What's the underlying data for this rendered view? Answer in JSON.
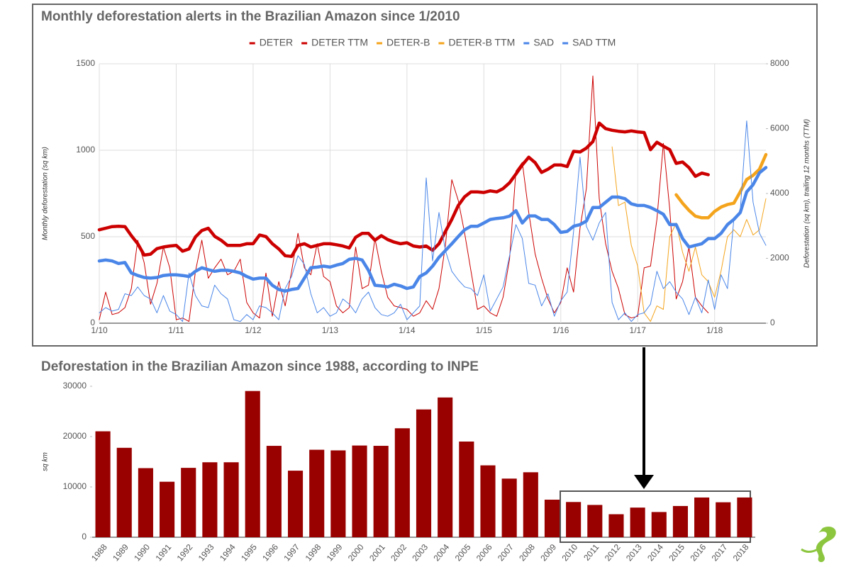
{
  "chart_data": [
    {
      "type": "line",
      "title": "Monthly deforestation alerts in the Brazilian Amazon since 1/2010",
      "ylabel": "Monthly deforestation (sq km)",
      "y2label": "Deforestation (sq km), trailing 12 months (TTM)",
      "grid": true,
      "legend": "top",
      "ylim": [
        0,
        1500
      ],
      "yticks": [
        0,
        500,
        1000,
        1500
      ],
      "y2lim": [
        0,
        8000
      ],
      "y2ticks": [
        0,
        2000,
        4000,
        6000,
        8000
      ],
      "categories": [
        "1/10",
        null,
        null,
        null,
        null,
        null,
        null,
        null,
        null,
        null,
        null,
        null,
        "1/11",
        null,
        null,
        null,
        null,
        null,
        null,
        null,
        null,
        null,
        null,
        null,
        "1/12",
        null,
        null,
        null,
        null,
        null,
        null,
        null,
        null,
        null,
        null,
        null,
        "1/13",
        null,
        null,
        null,
        null,
        null,
        null,
        null,
        null,
        null,
        null,
        null,
        "1/14",
        null,
        null,
        null,
        null,
        null,
        null,
        null,
        null,
        null,
        null,
        null,
        "1/15",
        null,
        null,
        null,
        null,
        null,
        null,
        null,
        null,
        null,
        null,
        null,
        "1/16",
        null,
        null,
        null,
        null,
        null,
        null,
        null,
        null,
        null,
        null,
        null,
        "1/17",
        null,
        null,
        null,
        null,
        null,
        null,
        null,
        null,
        null,
        null,
        null,
        "1/18",
        null,
        null,
        null,
        null,
        null,
        null,
        null,
        null
      ],
      "series": [
        {
          "name": "DETER",
          "color": "#cc0000",
          "values": [
            20,
            180,
            50,
            60,
            90,
            200,
            480,
            350,
            110,
            230,
            440,
            320,
            20,
            30,
            10,
            300,
            480,
            260,
            320,
            370,
            280,
            300,
            370,
            120,
            60,
            30,
            290,
            40,
            240,
            100,
            300,
            520,
            320,
            280,
            460,
            270,
            240,
            100,
            60,
            90,
            440,
            200,
            220,
            490,
            300,
            150,
            100,
            90,
            80,
            40,
            60,
            130,
            80,
            200,
            450,
            830,
            710,
            520,
            300,
            80,
            100,
            60,
            40,
            150,
            370,
            880,
            930,
            640,
            400,
            260,
            140,
            60,
            120,
            320,
            180,
            550,
            780,
            1430,
            720,
            460,
            300,
            200,
            50,
            30,
            40,
            320,
            330,
            600,
            1040,
            660,
            140,
            240,
            440,
            150,
            100,
            60,
            null,
            null,
            null,
            null,
            null,
            null,
            null,
            null,
            null
          ]
        },
        {
          "name": "DETER TTM",
          "color": "#cc0000",
          "axis": "y2",
          "values": [
            2880,
            2930,
            2980,
            2990,
            2980,
            2700,
            2450,
            2100,
            2130,
            2300,
            2350,
            2380,
            2400,
            2220,
            2290,
            2660,
            2860,
            2930,
            2680,
            2560,
            2400,
            2400,
            2400,
            2450,
            2450,
            2720,
            2670,
            2450,
            2290,
            2080,
            2060,
            2400,
            2450,
            2350,
            2400,
            2450,
            2450,
            2420,
            2380,
            2320,
            2650,
            2770,
            2770,
            2560,
            2700,
            2580,
            2500,
            2450,
            2480,
            2380,
            2350,
            2380,
            2250,
            2450,
            2830,
            3200,
            3630,
            3900,
            4050,
            4050,
            4030,
            4080,
            4050,
            4150,
            4330,
            4600,
            4880,
            5120,
            4950,
            4650,
            4750,
            4880,
            4880,
            4830,
            5300,
            5280,
            5400,
            5600,
            6170,
            6000,
            5950,
            5920,
            5900,
            5930,
            5900,
            5880,
            5350,
            5580,
            5460,
            5350,
            4930,
            4970,
            4800,
            4530,
            4630,
            4580,
            null,
            null,
            null,
            null,
            null,
            null,
            null,
            null,
            null
          ]
        },
        {
          "name": "DETER-B",
          "color": "#f4a41c",
          "values": [
            null,
            null,
            null,
            null,
            null,
            null,
            null,
            null,
            null,
            null,
            null,
            null,
            null,
            null,
            null,
            null,
            null,
            null,
            null,
            null,
            null,
            null,
            null,
            null,
            null,
            null,
            null,
            null,
            null,
            null,
            null,
            null,
            null,
            null,
            null,
            null,
            null,
            null,
            null,
            null,
            null,
            null,
            null,
            null,
            null,
            null,
            null,
            null,
            null,
            null,
            null,
            null,
            null,
            null,
            null,
            null,
            null,
            null,
            null,
            null,
            null,
            null,
            null,
            null,
            null,
            null,
            null,
            null,
            null,
            null,
            null,
            null,
            null,
            null,
            null,
            null,
            null,
            null,
            null,
            null,
            1020,
            680,
            700,
            450,
            330,
            60,
            10,
            100,
            80,
            500,
            580,
            410,
            300,
            440,
            280,
            240,
            150,
            300,
            500,
            540,
            500,
            600,
            510,
            540,
            720
          ]
        },
        {
          "name": "DETER-B TTM",
          "color": "#f4a41c",
          "axis": "y2",
          "values": [
            null,
            null,
            null,
            null,
            null,
            null,
            null,
            null,
            null,
            null,
            null,
            null,
            null,
            null,
            null,
            null,
            null,
            null,
            null,
            null,
            null,
            null,
            null,
            null,
            null,
            null,
            null,
            null,
            null,
            null,
            null,
            null,
            null,
            null,
            null,
            null,
            null,
            null,
            null,
            null,
            null,
            null,
            null,
            null,
            null,
            null,
            null,
            null,
            null,
            null,
            null,
            null,
            null,
            null,
            null,
            null,
            null,
            null,
            null,
            null,
            null,
            null,
            null,
            null,
            null,
            null,
            null,
            null,
            null,
            null,
            null,
            null,
            null,
            null,
            null,
            null,
            null,
            null,
            null,
            null,
            null,
            null,
            null,
            null,
            null,
            null,
            null,
            null,
            null,
            null,
            3960,
            3700,
            3480,
            3300,
            3250,
            3250,
            3450,
            3580,
            3660,
            3700,
            4050,
            4430,
            4560,
            4750,
            5200
          ]
        },
        {
          "name": "SAD",
          "color": "#4a86e8",
          "values": [
            60,
            90,
            70,
            80,
            170,
            160,
            210,
            160,
            140,
            60,
            160,
            70,
            50,
            10,
            290,
            160,
            100,
            90,
            220,
            170,
            140,
            20,
            10,
            50,
            20,
            100,
            90,
            60,
            20,
            200,
            270,
            390,
            340,
            170,
            60,
            90,
            40,
            60,
            140,
            110,
            60,
            140,
            180,
            90,
            50,
            40,
            60,
            110,
            20,
            60,
            100,
            840,
            360,
            640,
            420,
            300,
            250,
            210,
            200,
            160,
            280,
            70,
            140,
            210,
            390,
            570,
            490,
            230,
            220,
            100,
            170,
            40,
            130,
            180,
            530,
            960,
            560,
            480,
            580,
            640,
            120,
            20,
            60,
            10,
            50,
            60,
            110,
            300,
            200,
            240,
            180,
            140,
            50,
            150,
            60,
            250,
            80,
            280,
            200,
            600,
            650,
            1170,
            700,
            520,
            450
          ]
        },
        {
          "name": "SAD TTM",
          "color": "#4a86e8",
          "axis": "y2",
          "values": [
            1920,
            1950,
            1920,
            1840,
            1870,
            1550,
            1470,
            1410,
            1390,
            1410,
            1470,
            1490,
            1490,
            1470,
            1440,
            1600,
            1710,
            1650,
            1600,
            1630,
            1630,
            1600,
            1550,
            1440,
            1360,
            1390,
            1390,
            1170,
            1040,
            990,
            1040,
            1070,
            1390,
            1710,
            1730,
            1760,
            1730,
            1790,
            1840,
            1970,
            2000,
            1950,
            1630,
            1170,
            1150,
            1120,
            1200,
            1150,
            1070,
            1120,
            1440,
            1550,
            1760,
            2030,
            2240,
            2450,
            2670,
            2880,
            2990,
            2990,
            3090,
            3200,
            3230,
            3250,
            3300,
            3470,
            3090,
            3310,
            3310,
            3200,
            3200,
            3040,
            2800,
            2830,
            2990,
            3040,
            3150,
            3570,
            3570,
            3730,
            3890,
            3890,
            3840,
            3680,
            3630,
            3630,
            3570,
            3470,
            3360,
            3040,
            3040,
            2610,
            2350,
            2400,
            2450,
            2610,
            2610,
            2770,
            3040,
            3200,
            3410,
            4050,
            4270,
            4640,
            4800
          ]
        }
      ]
    },
    {
      "type": "bar",
      "title": "Deforestation in the Brazilian Amazon since 1988, according to INPE",
      "ylabel": "sq km",
      "color": "#990000",
      "grid": false,
      "ylim": [
        0,
        30000
      ],
      "yticks": [
        0,
        10000,
        20000,
        30000
      ],
      "categories": [
        "1988",
        "1989",
        "1990",
        "1991",
        "1992",
        "1993",
        "1994",
        "1995",
        "1996",
        "1997",
        "1998",
        "1999",
        "2000",
        "2001",
        "2002",
        "2003",
        "2004",
        "2005",
        "2006",
        "2007",
        "2008",
        "2009",
        "2010",
        "2011",
        "2012",
        "2013",
        "2014",
        "2015",
        "2016",
        "2017",
        "2018"
      ],
      "values": [
        21050,
        17770,
        13730,
        11030,
        13786,
        14896,
        14896,
        29059,
        18161,
        13227,
        17383,
        17259,
        18226,
        18165,
        21651,
        25396,
        27772,
        19014,
        14286,
        11651,
        12911,
        7464,
        7000,
        6418,
        4571,
        5891,
        5012,
        6207,
        7893,
        6947,
        7900
      ]
    }
  ]
}
